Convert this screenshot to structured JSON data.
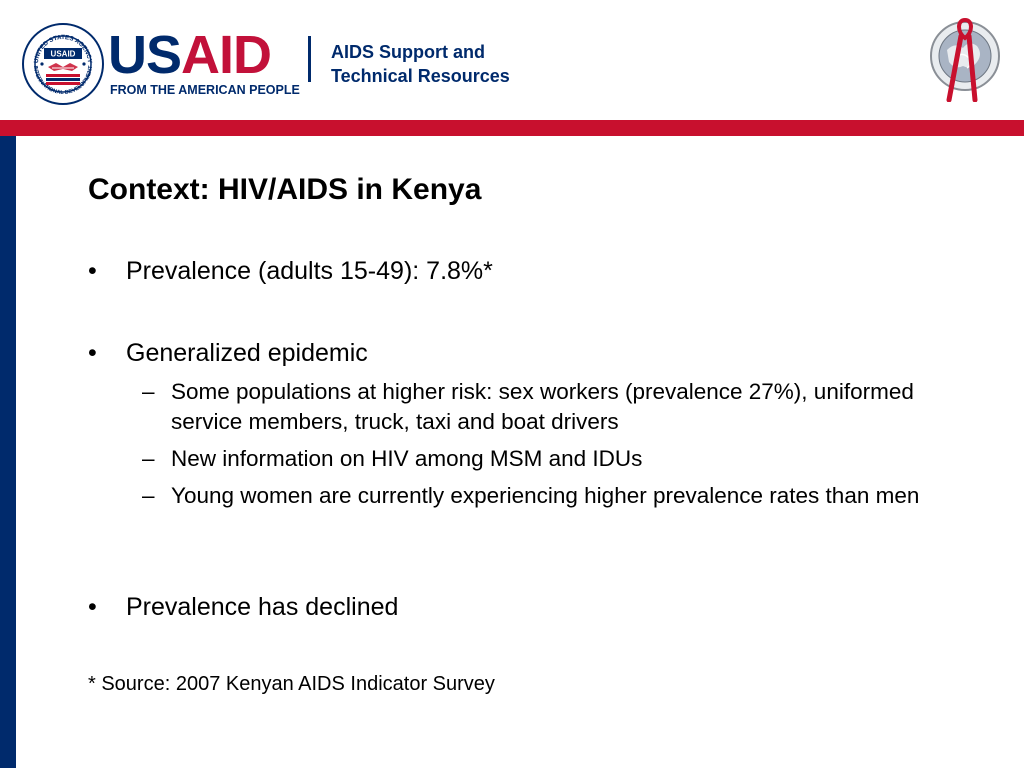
{
  "header": {
    "seal_top_text": "UNITED STATES AGENCY",
    "seal_bottom_text": "INTERNATIONAL DEVELOPMENT",
    "seal_badge": "USAID",
    "wordmark_us": "US",
    "wordmark_aid": "AID",
    "tagline": "FROM THE AMERICAN PEOPLE",
    "program_line1": "AIDS Support and",
    "program_line2": "Technical Resources"
  },
  "colors": {
    "usaid_blue": "#002a6c",
    "usaid_red": "#c8102e"
  },
  "slide": {
    "title": "Context: HIV/AIDS in Kenya",
    "bullet_marker": "•",
    "sub_marker": "–",
    "bullets": [
      {
        "text": "Prevalence (adults 15-49): 7.8%*"
      },
      {
        "text": "Generalized epidemic",
        "subitems": [
          "Some populations at higher risk: sex workers (prevalence 27%), uniformed service members, truck, taxi and boat drivers",
          "New information on HIV among MSM and IDUs",
          "Young women are currently experiencing higher prevalence rates than men"
        ]
      },
      {
        "text": "Prevalence has declined"
      }
    ],
    "footnote": "* Source: 2007 Kenyan AIDS Indicator Survey"
  }
}
